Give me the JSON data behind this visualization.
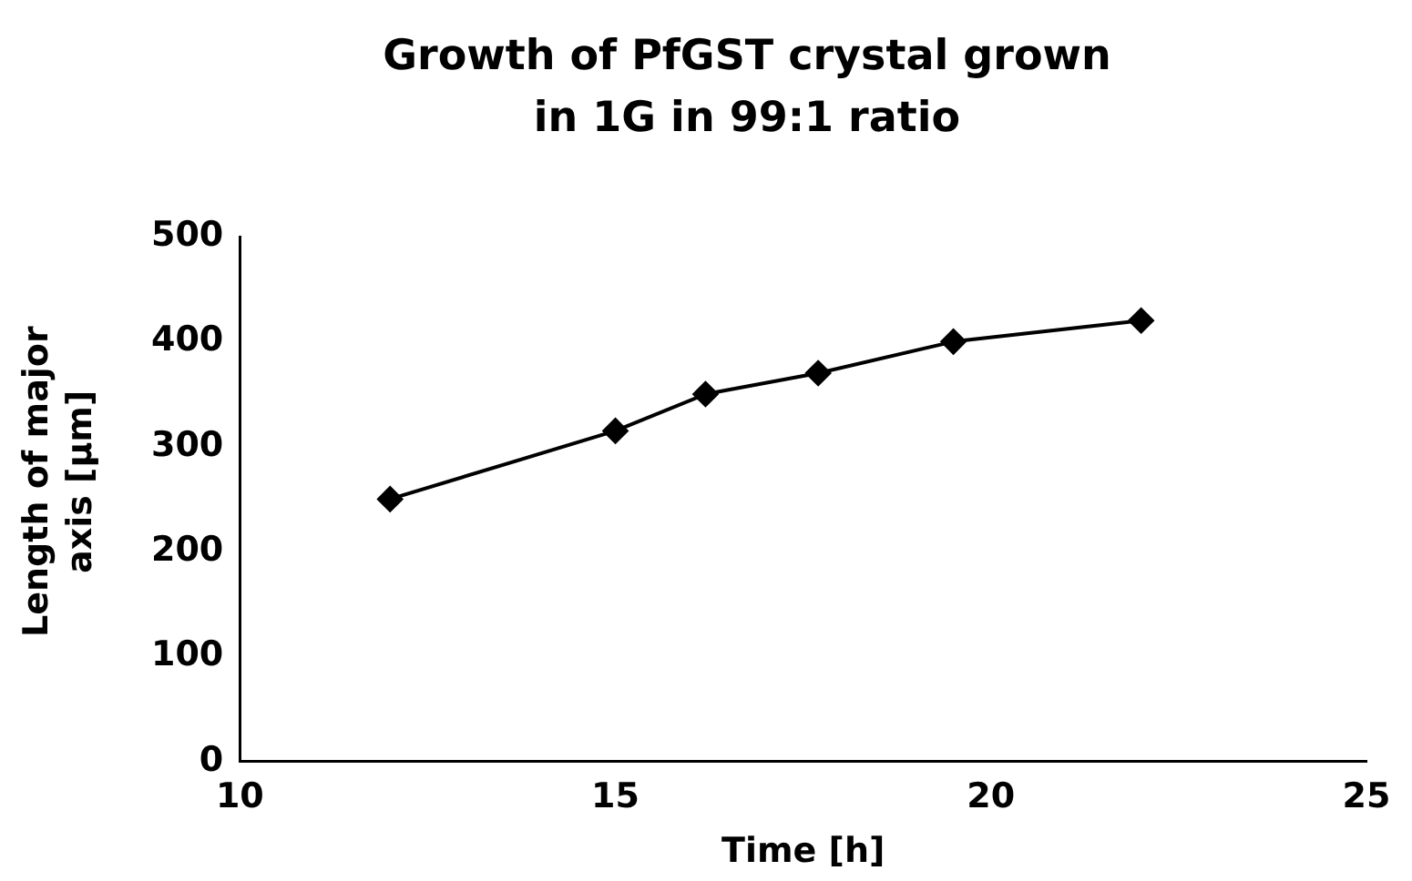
{
  "chart_data": {
    "type": "line",
    "title": "Growth of PfGST crystal grown in 1G in 99:1 ratio",
    "xlabel": "Time [h]",
    "ylabel": "Length of major axis [µm]",
    "x": [
      12,
      15,
      16.2,
      17.7,
      19.5,
      22
    ],
    "series": [
      {
        "color": "#000000",
        "values": [
          250,
          315,
          350,
          370,
          400,
          420
        ]
      }
    ],
    "xlim": [
      10,
      25
    ],
    "xticks": [
      10,
      15,
      20,
      25
    ],
    "ylim": [
      0,
      500
    ],
    "yticks": [
      0,
      100,
      200,
      300,
      400,
      500
    ],
    "grid": false,
    "legend": false,
    "marker": "diamond",
    "line_style": "solid"
  }
}
